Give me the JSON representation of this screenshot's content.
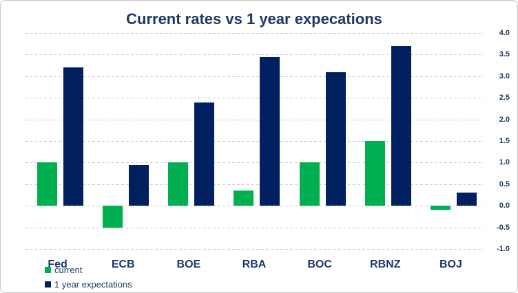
{
  "title": "Current rates vs 1 year expecations",
  "colors": {
    "current": "#00b050",
    "expectations": "#002060",
    "text": "#1f3864",
    "gridline": "#c9c9c9",
    "border": "#c5c5c5",
    "background": "#ffffff"
  },
  "legend": {
    "position": "bottom-left",
    "items": [
      {
        "label": "current",
        "color": "#00b050"
      },
      {
        "label": "1 year expectations",
        "color": "#002060"
      }
    ]
  },
  "y_axis": {
    "side": "right",
    "tick_labels": [
      "4.0",
      "3.5",
      "3.0",
      "2.5",
      "2.0",
      "1.5",
      "1.0",
      "0.5",
      "0.0",
      "-0.5",
      "-1.0"
    ],
    "tick_values": [
      4.0,
      3.5,
      3.0,
      2.5,
      2.0,
      1.5,
      1.0,
      0.5,
      0.0,
      -0.5,
      -1.0
    ]
  },
  "chart_data": {
    "type": "bar",
    "title": "Current rates vs 1 year expecations",
    "categories": [
      "Fed",
      "ECB",
      "BOE",
      "RBA",
      "BOC",
      "RBNZ",
      "BOJ"
    ],
    "series": [
      {
        "name": "current",
        "color": "#00b050",
        "values": [
          1.0,
          -0.5,
          1.0,
          0.35,
          1.0,
          1.5,
          -0.1
        ]
      },
      {
        "name": "1 year expectations",
        "color": "#002060",
        "values": [
          3.2,
          0.95,
          2.4,
          3.45,
          3.1,
          3.7,
          0.3
        ]
      }
    ],
    "xlabel": "",
    "ylabel": "",
    "ylim": [
      -1.0,
      4.0
    ],
    "ytick_step": 0.5,
    "grid": "horizontal-dashed",
    "legend_position": "bottom-left"
  }
}
